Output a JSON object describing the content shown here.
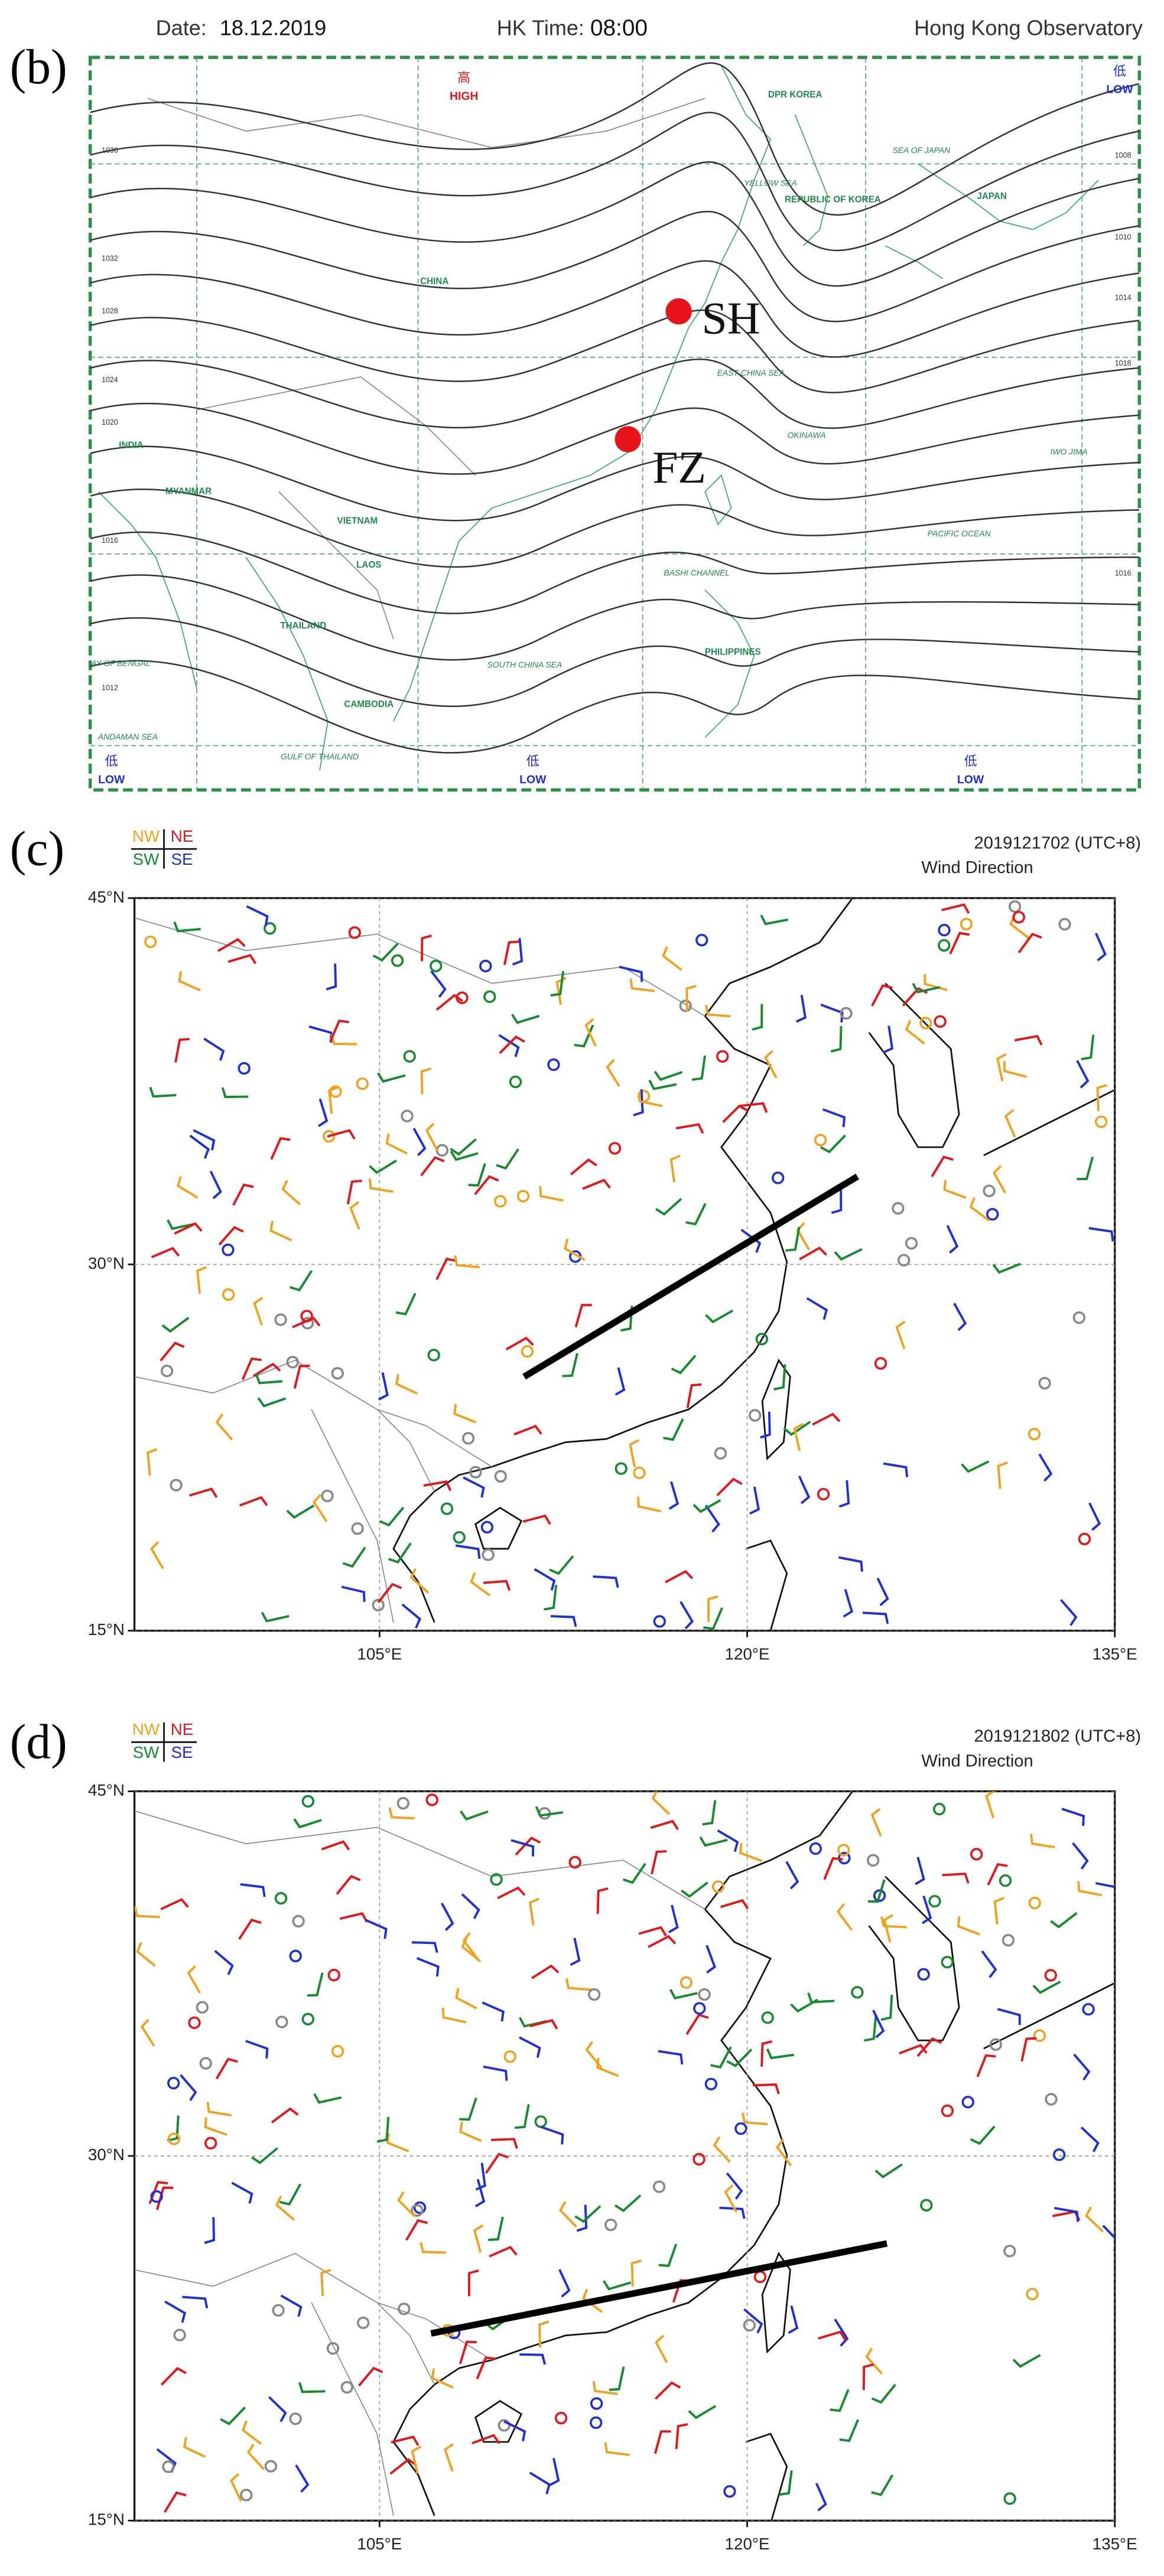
{
  "panel_b": {
    "label": "(b)",
    "date_label": "Date:",
    "date": "18.12.2019",
    "time_label": "HK Time:",
    "time": "08:00",
    "source": "Hong Kong Observatory",
    "high": {
      "symbol": "高",
      "label": "HIGH"
    },
    "lows": [
      {
        "symbol": "低",
        "label": "LOW"
      },
      {
        "symbol": "低",
        "label": "LOW"
      },
      {
        "symbol": "低",
        "label": "LOW"
      },
      {
        "symbol": "低",
        "label": "LOW"
      }
    ],
    "markers": [
      "SH",
      "FZ"
    ],
    "place_labels": [
      "CHINA",
      "INDIA",
      "MYANMAR",
      "LAOS",
      "VIETNAM",
      "THAILAND",
      "CAMBODIA",
      "PHILIPPINES",
      "JAPAN",
      "REPUBLIC OF KOREA",
      "DPR KOREA"
    ],
    "sea_labels": [
      "PACIFIC OCEAN",
      "SOUTH CHINA SEA",
      "EAST CHINA SEA",
      "SEA OF JAPAN",
      "YELLOW SEA",
      "BAY OF BENGAL",
      "ANDAMAN SEA",
      "GULF OF THAILAND",
      "IWO JIMA",
      "OKINAWA",
      "BASHI CHANNEL"
    ],
    "isobar_labels": [
      1036,
      1032,
      1028,
      1024,
      1020,
      1016,
      1012,
      1008,
      1010,
      1014,
      1018,
      1016
    ]
  },
  "panel_c": {
    "label": "(c)",
    "legend": [
      {
        "name": "NW",
        "color": "#f0a21e"
      },
      {
        "name": "NE",
        "color": "#e3161c"
      },
      {
        "name": "SW",
        "color": "#168a2e"
      },
      {
        "name": "SE",
        "color": "#1e2fd8"
      }
    ],
    "time": "2019121702 (UTC+8)",
    "title": "Wind Direction",
    "xlim": [
      95,
      135
    ],
    "ylim": [
      15,
      45
    ],
    "xticks": [
      {
        "value": 105,
        "label": "105°E"
      },
      {
        "value": 120,
        "label": "120°E"
      },
      {
        "value": 135,
        "label": "135°E"
      }
    ],
    "yticks": [
      {
        "value": 15,
        "label": "15°N"
      },
      {
        "value": 30,
        "label": "30°N"
      },
      {
        "value": 45,
        "label": "45°N"
      }
    ],
    "front": {
      "lon": [
        110.9,
        124.5
      ],
      "lat": [
        25.4,
        33.6
      ]
    }
  },
  "panel_d": {
    "label": "(d)",
    "legend": [
      {
        "name": "NW",
        "color": "#f0a21e"
      },
      {
        "name": "NE",
        "color": "#e3161c"
      },
      {
        "name": "SW",
        "color": "#168a2e"
      },
      {
        "name": "SE",
        "color": "#1e2fd8"
      }
    ],
    "time": "2019121802 (UTC+8)",
    "title": "Wind Direction",
    "xlim": [
      95,
      135
    ],
    "ylim": [
      15,
      45
    ],
    "xticks": [
      {
        "value": 105,
        "label": "105°E"
      },
      {
        "value": 120,
        "label": "120°E"
      },
      {
        "value": 135,
        "label": "135°E"
      }
    ],
    "yticks": [
      {
        "value": 15,
        "label": "15°N"
      },
      {
        "value": 30,
        "label": "30°N"
      },
      {
        "value": 45,
        "label": "45°N"
      }
    ],
    "front": {
      "lon": [
        107.1,
        125.7
      ],
      "lat": [
        22.7,
        26.4
      ]
    }
  }
}
